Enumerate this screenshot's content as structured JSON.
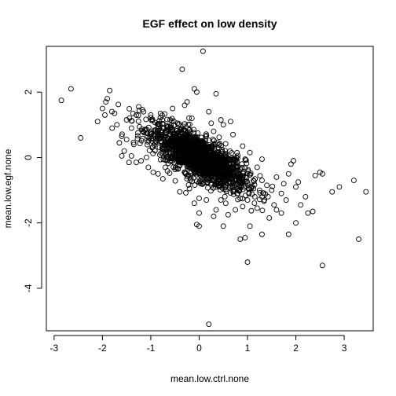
{
  "chart_data": {
    "type": "scatter",
    "title": "EGF effect on low density",
    "xlabel": "mean.low.ctrl.none",
    "ylabel": "mean.low.egf.none",
    "xlim": [
      -3.16,
      3.6
    ],
    "ylim": [
      -5.3,
      3.4
    ],
    "xticks": [
      -3,
      -2,
      -1,
      0,
      1,
      2,
      3
    ],
    "yticks": [
      -4,
      -2,
      0,
      2
    ],
    "xtick_labels": [
      "-3",
      "-2",
      "-1",
      "0",
      "1",
      "2",
      "3"
    ],
    "ytick_labels": [
      "-4",
      "-2",
      "0",
      "2"
    ],
    "grid": false,
    "marker": "open-circle",
    "cloud": {
      "description_note": "dense core of points centered near (0, 0) following a negative trend",
      "approx_count": 1700,
      "slope": -0.75,
      "sd_x": 0.48,
      "sd_resid": 0.32
    },
    "series": [
      {
        "values": [
          [
            -2.85,
            1.75
          ],
          [
            -2.65,
            2.1
          ],
          [
            -2.45,
            0.6
          ],
          [
            -1.85,
            2.05
          ],
          [
            -1.9,
            1.8
          ],
          [
            -1.93,
            1.7
          ],
          [
            -2.0,
            1.5
          ],
          [
            -1.95,
            1.3
          ],
          [
            -2.1,
            1.1
          ],
          [
            -1.75,
            1.35
          ],
          [
            -1.7,
            1.0
          ],
          [
            -1.8,
            0.9
          ],
          [
            -1.65,
            0.45
          ],
          [
            -1.55,
            0.2
          ],
          [
            -1.4,
            0.05
          ],
          [
            -1.25,
            1.55
          ],
          [
            -1.15,
            1.4
          ],
          [
            -1.3,
            1.3
          ],
          [
            -1.0,
            1.3
          ],
          [
            -0.8,
            1.35
          ],
          [
            -1.2,
            -0.1
          ],
          [
            -1.05,
            -0.3
          ],
          [
            -0.85,
            -0.5
          ],
          [
            -0.7,
            -0.3
          ],
          [
            -0.55,
            1.5
          ],
          [
            -0.35,
            2.7
          ],
          [
            -0.3,
            1.6
          ],
          [
            -0.25,
            1.7
          ],
          [
            -0.1,
            2.1
          ],
          [
            -0.05,
            2.0
          ],
          [
            0.08,
            3.25
          ],
          [
            0.35,
            1.95
          ],
          [
            0.65,
            1.1
          ],
          [
            0.5,
            1.0
          ],
          [
            0.3,
            0.8
          ],
          [
            -0.3,
            0.5
          ],
          [
            -0.6,
            0.9
          ],
          [
            -0.4,
            -1.05
          ],
          [
            -0.2,
            -0.95
          ],
          [
            0.0,
            -1.25
          ],
          [
            -0.1,
            -1.4
          ],
          [
            0.15,
            -1.3
          ],
          [
            0.35,
            -1.6
          ],
          [
            0.45,
            -1.3
          ],
          [
            0.55,
            -1.4
          ],
          [
            0.6,
            -1.75
          ],
          [
            0.75,
            -1.6
          ],
          [
            0.8,
            -1.1
          ],
          [
            0.85,
            -1.25
          ],
          [
            0.9,
            -1.5
          ],
          [
            1.0,
            -1.3
          ],
          [
            1.1,
            -0.9
          ],
          [
            1.15,
            -1.2
          ],
          [
            1.2,
            -1.55
          ],
          [
            1.25,
            -1.0
          ],
          [
            1.3,
            -0.7
          ],
          [
            1.35,
            -1.3
          ],
          [
            1.4,
            -0.85
          ],
          [
            1.5,
            -1.0
          ],
          [
            1.55,
            -1.45
          ],
          [
            1.6,
            -0.6
          ],
          [
            1.7,
            -1.1
          ],
          [
            1.75,
            -0.8
          ],
          [
            1.8,
            -1.3
          ],
          [
            1.85,
            -0.5
          ],
          [
            1.9,
            -0.2
          ],
          [
            1.95,
            -0.1
          ],
          [
            2.0,
            -0.9
          ],
          [
            2.05,
            -0.75
          ],
          [
            2.1,
            -1.45
          ],
          [
            2.2,
            -1.2
          ],
          [
            2.25,
            -1.7
          ],
          [
            2.35,
            -1.65
          ],
          [
            2.4,
            -0.55
          ],
          [
            2.5,
            -0.45
          ],
          [
            2.55,
            -0.5
          ],
          [
            2.75,
            -1.05
          ],
          [
            2.9,
            -0.9
          ],
          [
            3.2,
            -0.7
          ],
          [
            3.45,
            -1.05
          ],
          [
            3.3,
            -2.5
          ],
          [
            2.55,
            -3.3
          ],
          [
            1.3,
            -2.35
          ],
          [
            1.05,
            -2.1
          ],
          [
            0.85,
            -2.5
          ],
          [
            1.0,
            -3.2
          ],
          [
            0.95,
            -2.45
          ],
          [
            0.5,
            -2.1
          ],
          [
            1.85,
            -2.35
          ],
          [
            2.0,
            -2.0
          ],
          [
            0.2,
            -5.1
          ],
          [
            -0.05,
            -2.05
          ],
          [
            0.0,
            -2.1
          ],
          [
            0.0,
            -1.7
          ],
          [
            0.3,
            -1.8
          ],
          [
            1.45,
            -1.85
          ],
          [
            1.6,
            -1.6
          ],
          [
            1.7,
            -1.7
          ],
          [
            0.2,
            1.4
          ],
          [
            0.45,
            1.15
          ],
          [
            0.7,
            0.7
          ],
          [
            0.25,
            1.05
          ],
          [
            -0.15,
            1.2
          ],
          [
            -0.45,
            1.05
          ],
          [
            -0.6,
            1.15
          ],
          [
            -1.4,
            0.9
          ],
          [
            -1.5,
            1.15
          ],
          [
            -1.6,
            0.65
          ],
          [
            -1.5,
            0.55
          ],
          [
            -1.35,
            0.4
          ],
          [
            -1.45,
            -0.15
          ],
          [
            -1.6,
            0.05
          ],
          [
            -1.3,
            -0.15
          ],
          [
            -0.95,
            -0.45
          ],
          [
            -0.75,
            -0.65
          ],
          [
            0.9,
            0.35
          ],
          [
            1.05,
            0.15
          ],
          [
            1.2,
            -0.3
          ],
          [
            0.95,
            -0.05
          ],
          [
            1.3,
            -0.05
          ]
        ]
      }
    ]
  }
}
